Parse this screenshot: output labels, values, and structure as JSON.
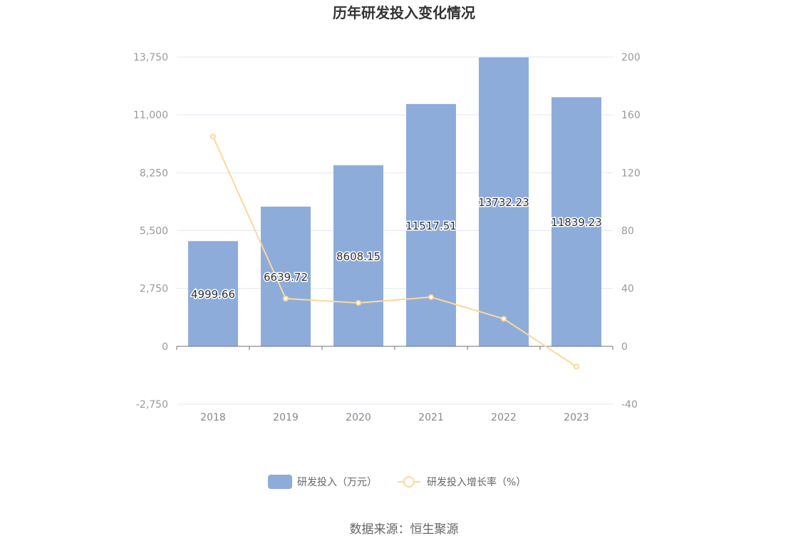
{
  "source_label": "数据来源：恒生聚源",
  "chart_data": {
    "type": "bar",
    "title": "历年研发投入变化情况",
    "categories": [
      "2018",
      "2019",
      "2020",
      "2021",
      "2022",
      "2023"
    ],
    "series": [
      {
        "name": "研发投入（万元）",
        "type": "bar",
        "axis": "left",
        "color": "#8eacda",
        "values": [
          4999.66,
          6639.72,
          8608.15,
          11517.51,
          13732.23,
          11839.23
        ],
        "labels": [
          "4999.66",
          "6639.72",
          "8608.15",
          "11517.51",
          "13732.23",
          "11839.23"
        ]
      },
      {
        "name": "研发投入增长率（%）",
        "type": "line",
        "axis": "right",
        "color": "#fbd89a",
        "values": [
          145,
          33,
          30,
          34,
          19,
          -14
        ]
      }
    ],
    "y_left": {
      "ylim": [
        -2750,
        13750
      ],
      "ticks": [
        -2750,
        0,
        2750,
        5500,
        8250,
        11000,
        13750
      ],
      "tick_labels": [
        "-2,750",
        "0",
        "2,750",
        "5,500",
        "8,250",
        "11,000",
        "13,750"
      ]
    },
    "y_right": {
      "ylim": [
        -40,
        200
      ],
      "ticks": [
        -40,
        0,
        40,
        80,
        120,
        160,
        200
      ],
      "tick_labels": [
        "-40",
        "0",
        "40",
        "80",
        "120",
        "160",
        "200"
      ]
    },
    "grid": true,
    "legend": "bottom-center"
  }
}
